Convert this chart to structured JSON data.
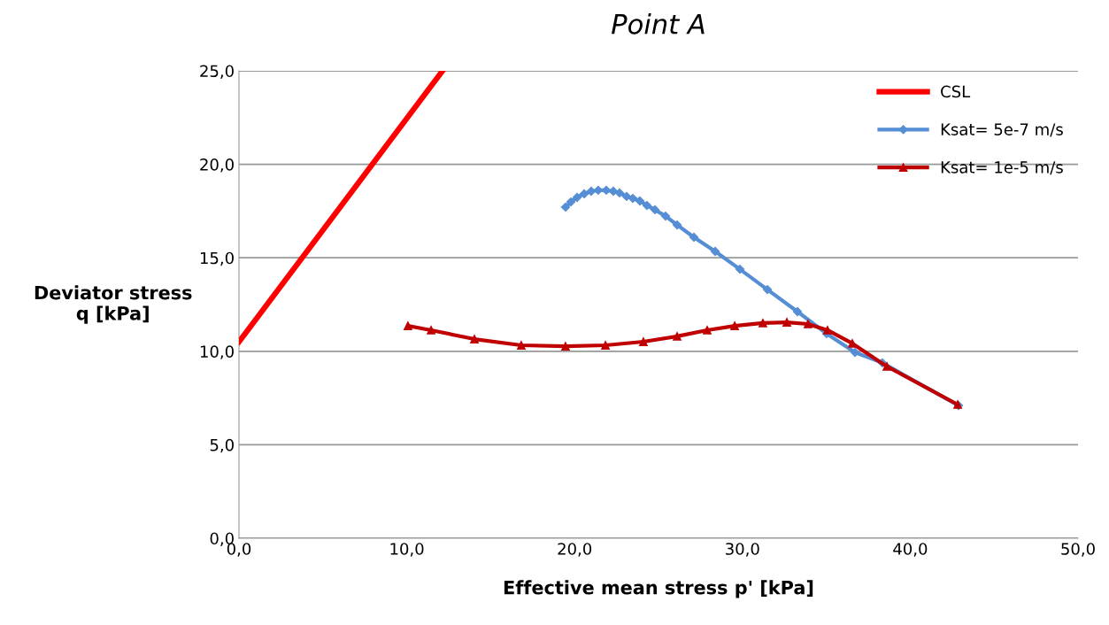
{
  "chart_data": {
    "type": "line",
    "title": "Point A",
    "xlabel": "Effective mean stress p' [kPa]",
    "ylabel": "Deviator stress\nq [kPa]",
    "xlim": [
      0,
      50
    ],
    "ylim": [
      0,
      25
    ],
    "xticks": [
      {
        "value": 0,
        "label": "0,0"
      },
      {
        "value": 10,
        "label": "10,0"
      },
      {
        "value": 20,
        "label": "20,0"
      },
      {
        "value": 30,
        "label": "30,0"
      },
      {
        "value": 40,
        "label": "40,0"
      },
      {
        "value": 50,
        "label": "50,0"
      }
    ],
    "yticks": [
      {
        "value": 0,
        "label": "0,0"
      },
      {
        "value": 5,
        "label": "5,0"
      },
      {
        "value": 10,
        "label": "10,0"
      },
      {
        "value": 15,
        "label": "15,0"
      },
      {
        "value": 20,
        "label": "20,0"
      },
      {
        "value": 25,
        "label": "25,0"
      }
    ],
    "grid": "y",
    "legend": "top right",
    "series": [
      {
        "name": "CSL",
        "color": "#ff0000",
        "marker": "none",
        "x": [
          0,
          12.13
        ],
        "values": [
          10.5,
          25
        ]
      },
      {
        "name": "Ksat= 5e-7 m/s",
        "color": "#558ed5",
        "marker": "diamond",
        "x": [
          19.46,
          19.78,
          20.15,
          20.57,
          20.99,
          21.41,
          21.89,
          22.31,
          22.68,
          23.1,
          23.47,
          23.89,
          24.31,
          24.79,
          25.42,
          26.11,
          27.11,
          28.38,
          29.85,
          31.49,
          33.28,
          35.02,
          36.71,
          38.34,
          42.88
        ],
        "values": [
          17.71,
          17.99,
          18.23,
          18.42,
          18.56,
          18.61,
          18.61,
          18.56,
          18.47,
          18.28,
          18.18,
          18.04,
          17.8,
          17.57,
          17.23,
          16.76,
          16.1,
          15.34,
          14.39,
          13.3,
          12.12,
          10.94,
          9.94,
          9.38,
          7.1
        ]
      },
      {
        "name": "Ksat= 1e-5 m/s",
        "color": "#c00000",
        "marker": "triangle",
        "x": [
          10.07,
          11.45,
          14.03,
          16.82,
          19.46,
          21.84,
          24.1,
          26.11,
          27.9,
          29.54,
          31.22,
          32.65,
          33.91,
          35.07,
          36.55,
          38.61,
          42.83
        ],
        "values": [
          11.36,
          11.13,
          10.65,
          10.32,
          10.27,
          10.32,
          10.51,
          10.8,
          11.13,
          11.36,
          11.51,
          11.55,
          11.46,
          11.13,
          10.42,
          9.19,
          7.15
        ]
      }
    ]
  }
}
